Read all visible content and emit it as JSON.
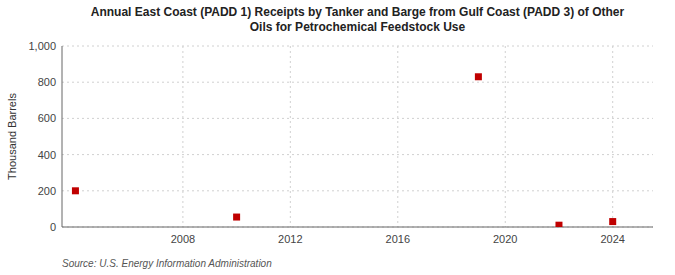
{
  "chart_data": {
    "type": "scatter",
    "title": "Annual East Coast (PADD 1) Receipts by Tanker and Barge from Gulf Coast (PADD 3) of Other\nOils for Petrochemical Feedstock Use",
    "y_label": "Thousand Barrels",
    "source": "Source: U.S. Energy Information Administration",
    "x": [
      2004,
      2010,
      2019,
      2022,
      2024
    ],
    "values": [
      200,
      55,
      830,
      10,
      30
    ],
    "color": "#c00000",
    "marker": "square",
    "xlim": [
      2003.5,
      2025.5
    ],
    "ylim": [
      0,
      1000
    ],
    "xticks": [
      2008,
      2012,
      2016,
      2020,
      2024
    ],
    "yticks": [
      0,
      200,
      400,
      600,
      800,
      {
        "value": 1000,
        "label": "1,000"
      }
    ],
    "grid": true
  }
}
